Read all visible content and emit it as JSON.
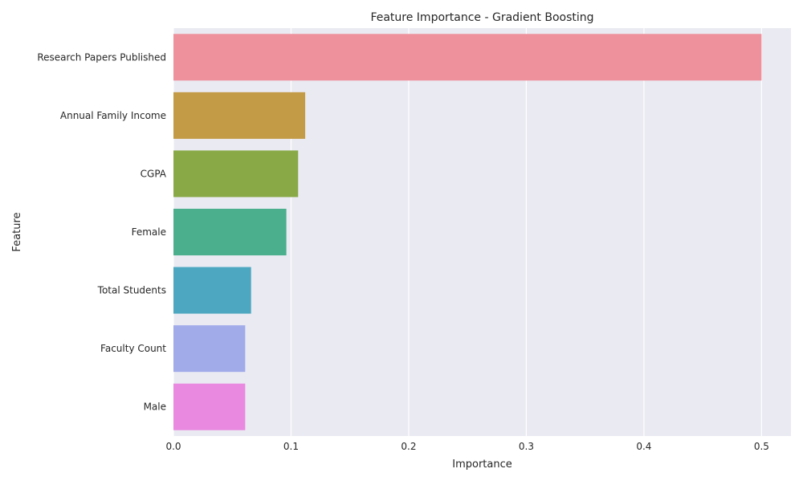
{
  "chart_data": {
    "type": "bar",
    "orientation": "horizontal",
    "title": "Feature Importance - Gradient Boosting",
    "xlabel": "Importance",
    "ylabel": "Feature",
    "categories": [
      "Research Papers Published",
      "Annual Family Income",
      "CGPA",
      "Female",
      "Total Students",
      "Faculty Count",
      "Male"
    ],
    "values": [
      0.5,
      0.112,
      0.106,
      0.096,
      0.066,
      0.061,
      0.061
    ],
    "colors": [
      "#ee919d",
      "#c39b47",
      "#89a947",
      "#4baf8e",
      "#4ea7c1",
      "#a1abea",
      "#e98ae0"
    ],
    "xlim": [
      0,
      0.525
    ],
    "xticks": [
      0.0,
      0.1,
      0.2,
      0.3,
      0.4,
      0.5
    ],
    "xtick_labels": [
      "0.0",
      "0.1",
      "0.2",
      "0.3",
      "0.4",
      "0.5"
    ],
    "grid": true,
    "background": "#eaeaf2",
    "grid_color": "#ffffff"
  }
}
